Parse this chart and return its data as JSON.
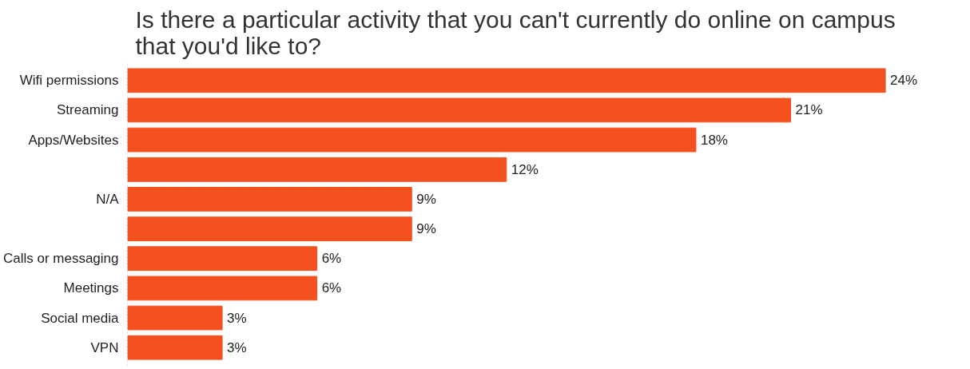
{
  "chart_data": {
    "type": "bar",
    "orientation": "horizontal",
    "title": "Is there a particular activity that you can't currently do online on campus that you'd like to?",
    "categories": [
      "Wifi permissions",
      "Streaming",
      "Apps/Websites",
      null,
      "N/A",
      null,
      "Calls or messaging",
      "Meetings",
      "Social media",
      "VPN"
    ],
    "values": [
      24,
      21,
      18,
      12,
      9,
      9,
      6,
      6,
      3,
      3
    ],
    "value_labels": [
      "24%",
      "21%",
      "18%",
      "12%",
      "9%",
      "9%",
      "6%",
      "6%",
      "3%",
      "3%"
    ],
    "color": "#f4511e",
    "grid": false
  }
}
